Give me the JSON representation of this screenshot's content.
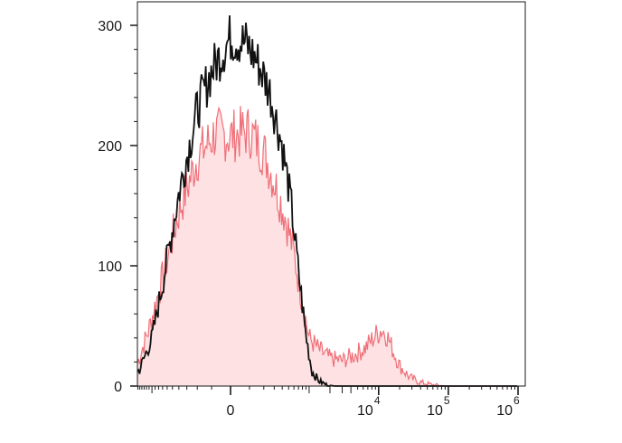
{
  "chart_data": {
    "type": "area",
    "title": "",
    "xlabel": "",
    "ylabel": "",
    "x_scale": "biexponential",
    "ylim": [
      0,
      300
    ],
    "grid": false,
    "y_ticks": [
      {
        "value": 0,
        "label": "0"
      },
      {
        "value": 100,
        "label": "100"
      },
      {
        "value": 200,
        "label": "200"
      },
      {
        "value": 300,
        "label": "300"
      }
    ],
    "x_ticks": [
      {
        "value": 0,
        "base": "0",
        "exp": ""
      },
      {
        "value": 10000,
        "base": "10",
        "exp": "4"
      },
      {
        "value": 100000,
        "base": "10",
        "exp": "5"
      },
      {
        "value": 1000000,
        "base": "10",
        "exp": "6"
      }
    ],
    "colors": {
      "sample_fill": "#fde1e3",
      "sample_line": "#ef6f78",
      "control_line": "#111111",
      "axis": "#1a1a1a"
    },
    "series": [
      {
        "role": "control",
        "style": "line",
        "x": [
          -3000,
          -2000,
          -1500,
          -1000,
          -700,
          -400,
          -200,
          -100,
          0,
          80,
          150,
          250,
          400,
          550,
          700,
          900,
          1100,
          1400,
          1800,
          2300,
          3000,
          4000,
          6000,
          10000,
          30000,
          1000000
        ],
        "y": [
          0,
          5,
          14,
          40,
          85,
          160,
          230,
          262,
          290,
          285,
          270,
          246,
          200,
          150,
          95,
          42,
          12,
          4,
          1,
          0,
          0,
          0,
          0,
          0,
          0,
          0
        ]
      },
      {
        "role": "sample",
        "style": "area",
        "x": [
          -3000,
          -2200,
          -1600,
          -1100,
          -700,
          -400,
          -200,
          -80,
          0,
          100,
          200,
          300,
          450,
          600,
          800,
          1000,
          1400,
          2000,
          3000,
          4500,
          6500,
          9000,
          11000,
          13000,
          16000,
          20000,
          28000,
          40000,
          60000,
          100000,
          1000000
        ],
        "y": [
          0,
          8,
          20,
          48,
          90,
          145,
          190,
          210,
          208,
          212,
          195,
          170,
          140,
          110,
          70,
          40,
          30,
          23,
          21,
          26,
          32,
          42,
          47,
          43,
          30,
          17,
          7,
          3,
          1,
          0,
          0
        ]
      }
    ]
  }
}
